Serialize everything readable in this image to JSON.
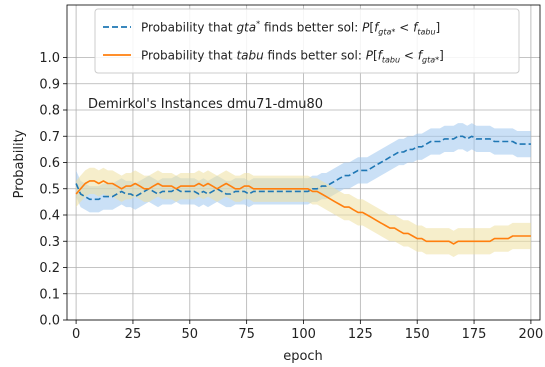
{
  "chart_data": {
    "type": "line",
    "title": "",
    "annotation": "Demirkol's Instances dmu71-dmu80",
    "xlabel": "epoch",
    "ylabel": "Probability",
    "xlim": [
      -4,
      204
    ],
    "ylim": [
      0.0,
      1.2
    ],
    "xticks": [
      0,
      25,
      50,
      75,
      100,
      125,
      150,
      175,
      200
    ],
    "yticks": [
      0.0,
      0.1,
      0.2,
      0.3,
      0.4,
      0.5,
      0.6,
      0.7,
      0.8,
      0.9,
      1.0
    ],
    "xtick_labels": [
      "0",
      "25",
      "50",
      "75",
      "100",
      "125",
      "150",
      "175",
      "200"
    ],
    "ytick_labels": [
      "0.0",
      "0.1",
      "0.2",
      "0.3",
      "0.4",
      "0.5",
      "0.6",
      "0.7",
      "0.8",
      "0.9",
      "1.0"
    ],
    "grid": true,
    "legend_position": "top-right",
    "series": [
      {
        "name": "Probability that gta* finds better sol: P[f_gta* < f_tabu]",
        "legend_parts": [
          {
            "t": "Probability that ",
            "s": "n"
          },
          {
            "t": "gta",
            "s": "i"
          },
          {
            "t": "*",
            "s": "sup"
          },
          {
            "t": " finds better sol: ",
            "s": "n"
          },
          {
            "t": "P",
            "s": "i"
          },
          {
            "t": "[",
            "s": "n"
          },
          {
            "t": "f",
            "s": "i"
          },
          {
            "t": "gta*",
            "s": "sub"
          },
          {
            "t": " < ",
            "s": "n"
          },
          {
            "t": "f",
            "s": "i"
          },
          {
            "t": "tabu",
            "s": "sub"
          },
          {
            "t": "]",
            "s": "n"
          }
        ],
        "color": "#1f77b4",
        "band_color": "#9fc7ee",
        "style": "dashed",
        "x": [
          0,
          2,
          4,
          6,
          8,
          10,
          12,
          14,
          16,
          18,
          20,
          22,
          24,
          26,
          28,
          30,
          32,
          34,
          36,
          38,
          40,
          42,
          44,
          46,
          48,
          50,
          52,
          54,
          56,
          58,
          60,
          62,
          64,
          66,
          68,
          70,
          72,
          74,
          76,
          78,
          80,
          82,
          84,
          86,
          88,
          90,
          92,
          94,
          96,
          98,
          100,
          102,
          104,
          106,
          108,
          110,
          112,
          114,
          116,
          118,
          120,
          122,
          124,
          126,
          128,
          130,
          132,
          134,
          136,
          138,
          140,
          142,
          144,
          146,
          148,
          150,
          152,
          154,
          156,
          158,
          160,
          162,
          164,
          166,
          168,
          170,
          172,
          174,
          176,
          178,
          180,
          182,
          184,
          186,
          188,
          190,
          192,
          194,
          196,
          198,
          200
        ],
        "y": [
          0.52,
          0.48,
          0.47,
          0.46,
          0.46,
          0.46,
          0.47,
          0.47,
          0.47,
          0.48,
          0.49,
          0.48,
          0.48,
          0.47,
          0.48,
          0.49,
          0.5,
          0.49,
          0.48,
          0.49,
          0.49,
          0.49,
          0.5,
          0.49,
          0.49,
          0.49,
          0.49,
          0.48,
          0.49,
          0.48,
          0.49,
          0.5,
          0.49,
          0.48,
          0.48,
          0.49,
          0.49,
          0.49,
          0.48,
          0.49,
          0.49,
          0.49,
          0.49,
          0.49,
          0.49,
          0.49,
          0.49,
          0.49,
          0.49,
          0.49,
          0.49,
          0.49,
          0.5,
          0.5,
          0.51,
          0.51,
          0.52,
          0.53,
          0.54,
          0.55,
          0.55,
          0.56,
          0.57,
          0.57,
          0.57,
          0.58,
          0.59,
          0.6,
          0.61,
          0.62,
          0.63,
          0.64,
          0.64,
          0.65,
          0.65,
          0.66,
          0.66,
          0.67,
          0.68,
          0.68,
          0.68,
          0.69,
          0.69,
          0.69,
          0.7,
          0.7,
          0.69,
          0.7,
          0.69,
          0.69,
          0.69,
          0.69,
          0.68,
          0.68,
          0.68,
          0.68,
          0.68,
          0.67,
          0.67,
          0.67,
          0.67
        ],
        "band_halfwidth": 0.05
      },
      {
        "name": "Probability that tabu finds better sol: P[f_tabu < f_gta*]",
        "legend_parts": [
          {
            "t": "Probability that ",
            "s": "n"
          },
          {
            "t": "tabu",
            "s": "i"
          },
          {
            "t": " finds better sol: ",
            "s": "n"
          },
          {
            "t": "P",
            "s": "i"
          },
          {
            "t": "[",
            "s": "n"
          },
          {
            "t": "f",
            "s": "i"
          },
          {
            "t": "tabu",
            "s": "sub"
          },
          {
            "t": " < ",
            "s": "n"
          },
          {
            "t": "f",
            "s": "i"
          },
          {
            "t": "gta*",
            "s": "sub"
          },
          {
            "t": "]",
            "s": "n"
          }
        ],
        "color": "#ff7f0e",
        "band_color": "#efe0a0",
        "style": "solid",
        "x": [
          0,
          2,
          4,
          6,
          8,
          10,
          12,
          14,
          16,
          18,
          20,
          22,
          24,
          26,
          28,
          30,
          32,
          34,
          36,
          38,
          40,
          42,
          44,
          46,
          48,
          50,
          52,
          54,
          56,
          58,
          60,
          62,
          64,
          66,
          68,
          70,
          72,
          74,
          76,
          78,
          80,
          82,
          84,
          86,
          88,
          90,
          92,
          94,
          96,
          98,
          100,
          102,
          104,
          106,
          108,
          110,
          112,
          114,
          116,
          118,
          120,
          122,
          124,
          126,
          128,
          130,
          132,
          134,
          136,
          138,
          140,
          142,
          144,
          146,
          148,
          150,
          152,
          154,
          156,
          158,
          160,
          162,
          164,
          166,
          168,
          170,
          172,
          174,
          176,
          178,
          180,
          182,
          184,
          186,
          188,
          190,
          192,
          194,
          196,
          198,
          200
        ],
        "y": [
          0.48,
          0.5,
          0.52,
          0.53,
          0.53,
          0.52,
          0.53,
          0.52,
          0.52,
          0.51,
          0.5,
          0.51,
          0.51,
          0.52,
          0.51,
          0.5,
          0.5,
          0.51,
          0.52,
          0.51,
          0.51,
          0.51,
          0.5,
          0.51,
          0.51,
          0.51,
          0.51,
          0.52,
          0.51,
          0.52,
          0.51,
          0.5,
          0.51,
          0.52,
          0.51,
          0.5,
          0.5,
          0.51,
          0.51,
          0.5,
          0.5,
          0.5,
          0.5,
          0.5,
          0.5,
          0.5,
          0.5,
          0.5,
          0.5,
          0.5,
          0.5,
          0.5,
          0.49,
          0.49,
          0.48,
          0.47,
          0.46,
          0.45,
          0.44,
          0.43,
          0.43,
          0.42,
          0.41,
          0.41,
          0.4,
          0.39,
          0.38,
          0.37,
          0.36,
          0.35,
          0.35,
          0.34,
          0.33,
          0.33,
          0.32,
          0.31,
          0.31,
          0.3,
          0.3,
          0.3,
          0.3,
          0.3,
          0.3,
          0.29,
          0.3,
          0.3,
          0.3,
          0.3,
          0.3,
          0.3,
          0.3,
          0.3,
          0.31,
          0.31,
          0.31,
          0.31,
          0.32,
          0.32,
          0.32,
          0.32,
          0.32
        ],
        "band_halfwidth": 0.05
      }
    ]
  }
}
